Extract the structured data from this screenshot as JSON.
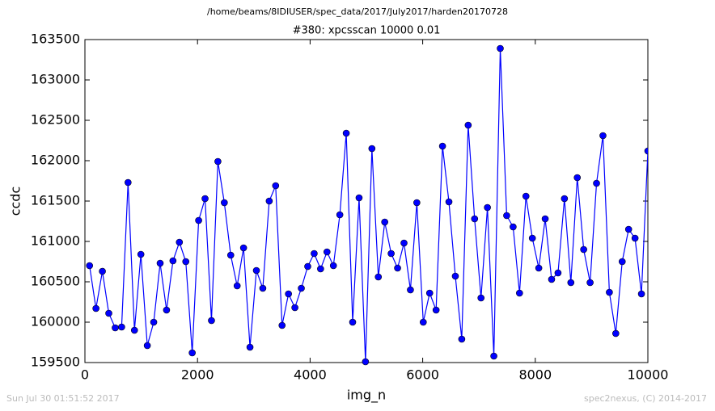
{
  "chart_data": {
    "type": "line",
    "header": "/home/beams/8IDIUSER/spec_data/2017/July2017/harden20170728",
    "title": "#380: xpcsscan 10000 0.01",
    "x_label": "img_n",
    "y_label": "ccdc",
    "footer_left": "Sun Jul 30 01:51:52 2017",
    "footer_right": "spec2nexus, (C) 2014-2017",
    "x": [
      82,
      196,
      310,
      424,
      538,
      652,
      766,
      880,
      994,
      1108,
      1222,
      1336,
      1450,
      1564,
      1678,
      1792,
      1906,
      2020,
      2134,
      2248,
      2362,
      2476,
      2590,
      2704,
      2818,
      2932,
      3046,
      3160,
      3274,
      3388,
      3502,
      3616,
      3730,
      3844,
      3958,
      4072,
      4186,
      4300,
      4414,
      4528,
      4642,
      4756,
      4870,
      4984,
      5098,
      5212,
      5326,
      5440,
      5554,
      5668,
      5782,
      5896,
      6010,
      6124,
      6238,
      6352,
      6466,
      6580,
      6694,
      6808,
      6922,
      7036,
      7150,
      7264,
      7378,
      7492,
      7606,
      7720,
      7834,
      7948,
      8062,
      8176,
      8290,
      8404,
      8518,
      8632,
      8746,
      8860,
      8974,
      9088,
      9202,
      9316,
      9430,
      9544,
      9658,
      9772,
      9886,
      10000
    ],
    "series": [
      {
        "color": "#0000ff",
        "values": [
          160700,
          160170,
          160630,
          160110,
          159930,
          159940,
          161730,
          159900,
          160840,
          159710,
          160000,
          160730,
          160150,
          160760,
          160990,
          160750,
          159620,
          161260,
          161530,
          160020,
          161990,
          161480,
          160830,
          160450,
          160920,
          159690,
          160640,
          160420,
          161500,
          161690,
          159960,
          160350,
          160180,
          160420,
          160690,
          160850,
          160660,
          160870,
          160700,
          161330,
          162340,
          160000,
          161540,
          159510,
          162150,
          160560,
          161240,
          160850,
          160670,
          160980,
          160400,
          161480,
          160000,
          160360,
          160150,
          162180,
          161490,
          160570,
          159790,
          162440,
          161280,
          160300,
          161420,
          159580,
          163390,
          161320,
          161180,
          160360,
          161560,
          161040,
          160670,
          161280,
          160530,
          160610,
          161530,
          160490,
          161790,
          160900,
          160490,
          161720,
          162310,
          160370,
          159860,
          160750,
          161150,
          161040,
          160350,
          162120
        ]
      }
    ],
    "xlim": [
      0,
      10000
    ],
    "xticks": [
      0,
      2000,
      4000,
      6000,
      8000,
      10000
    ],
    "ylim": [
      159500,
      163500
    ],
    "yticks": [
      159500,
      160000,
      160500,
      161000,
      161500,
      162000,
      162500,
      163000,
      163500
    ]
  }
}
